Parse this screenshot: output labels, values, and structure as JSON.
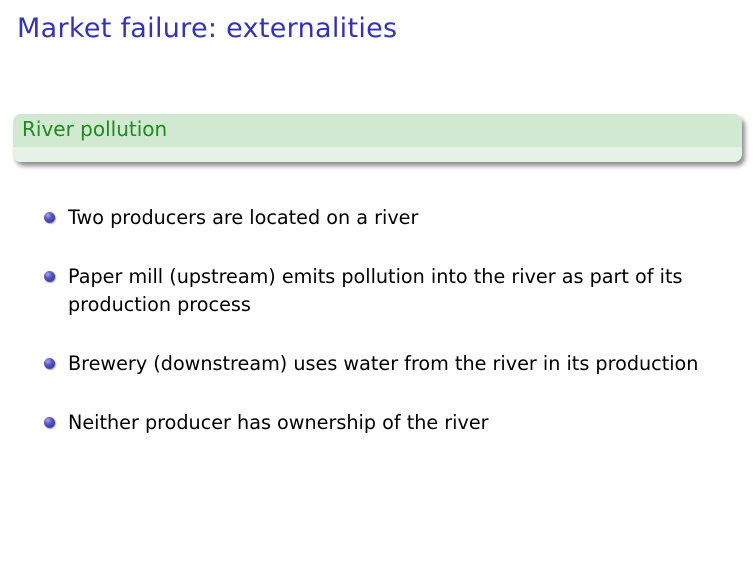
{
  "slide": {
    "title": "Market failure: externalities",
    "block_title": "River pollution",
    "bullets": [
      "Two producers are located on a river",
      "Paper mill (upstream) emits pollution into the river as part of its production process",
      "Brewery (downstream) uses water from the river in its production",
      "Neither producer has ownership of the river"
    ]
  },
  "colors": {
    "title": "#3333b3",
    "block_header": "#d1e8d1",
    "block_title_text": "#1f8a1f",
    "bullet": "#5a5ac8"
  }
}
